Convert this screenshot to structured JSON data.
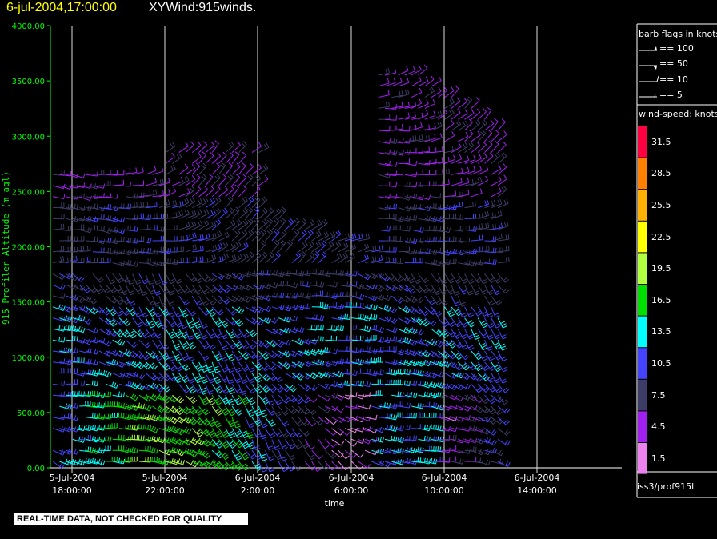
{
  "header": {
    "timestamp": "6-jul-2004,17:00:00",
    "title": "XYWind:915winds."
  },
  "banner": "REAL-TIME DATA, NOT CHECKED FOR QUALITY",
  "source_label": "iss3/prof915l",
  "barb_legend": {
    "title": "barb flags in knots",
    "items": [
      "== 100",
      "== 50",
      "== 10",
      "== 5"
    ]
  },
  "speed_legend": {
    "title": "wind-speed: knots",
    "bins": [
      {
        "label": "31.5",
        "color": "#ff0040"
      },
      {
        "label": "28.5",
        "color": "#ff8000"
      },
      {
        "label": "25.5",
        "color": "#ffb000"
      },
      {
        "label": "22.5",
        "color": "#ffff00"
      },
      {
        "label": "19.5",
        "color": "#b0ff40"
      },
      {
        "label": "16.5",
        "color": "#00e000"
      },
      {
        "label": "13.5",
        "color": "#00ffff"
      },
      {
        "label": "10.5",
        "color": "#4444ff"
      },
      {
        "label": "7.5",
        "color": "#3c3c66"
      },
      {
        "label": "4.5",
        "color": "#a020f0"
      },
      {
        "label": "1.5",
        "color": "#ee82ee"
      }
    ]
  },
  "chart_data": {
    "type": "wind-barb time-height plot",
    "ylabel": "915 Profiler Altitude (m agl)",
    "xlabel": "time",
    "ylim": [
      0,
      4000
    ],
    "yticks": [
      "0.00",
      "500.00",
      "1000.00",
      "1500.00",
      "2000.00",
      "2500.00",
      "3000.00",
      "3500.00",
      "4000.00"
    ],
    "xticks": [
      {
        "line1": "5-Jul-2004",
        "line2": "18:00:00"
      },
      {
        "line1": "5-Jul-2004",
        "line2": "22:00:00"
      },
      {
        "line1": "6-Jul-2004",
        "line2": "2:00:00"
      },
      {
        "line1": "6-Jul-2004",
        "line2": "6:00:00"
      },
      {
        "line1": "6-Jul-2004",
        "line2": "10:00:00"
      },
      {
        "line1": "6-Jul-2004",
        "line2": "14:00:00"
      }
    ],
    "grid": "vertical lines at time ticks"
  }
}
